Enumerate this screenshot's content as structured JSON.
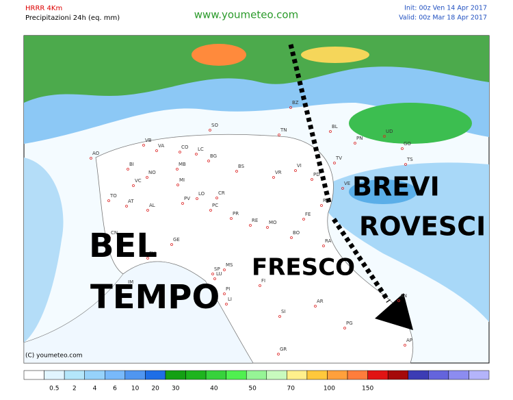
{
  "header": {
    "model": "HRRR 4Km",
    "product": "Precipitazioni 24h (eq. mm)",
    "site": "www.youmeteo.com",
    "init": "Init: 00z Ven  14 Apr 2017",
    "valid": "Valid: 00z Mar  18 Apr 2017"
  },
  "annotations": {
    "bel": "BEL",
    "tempo": "TEMPO",
    "fresco": "FRESCO",
    "brevi": "BREVI",
    "rovesci": "ROVESCI"
  },
  "copyright": "(C) youmeteo.com",
  "provinces": [
    "BZ",
    "SO",
    "TN",
    "BL",
    "UD",
    "PN",
    "GO",
    "TS",
    "VB",
    "VA",
    "CO",
    "LC",
    "BG",
    "BS",
    "VR",
    "VI",
    "TV",
    "VE",
    "PD",
    "RO",
    "AO",
    "BI",
    "NO",
    "MB",
    "MI",
    "CR",
    "LO",
    "PV",
    "PC",
    "TO",
    "VC",
    "AL",
    "AT",
    "CN",
    "GE",
    "SV",
    "IM",
    "SP",
    "MS",
    "LU",
    "PI",
    "LI",
    "FI",
    "PR",
    "RE",
    "MO",
    "BO",
    "FE",
    "RA",
    "AN",
    "AR",
    "SI",
    "GR",
    "PG",
    "AP"
  ],
  "legend": {
    "labels": [
      0.5,
      2,
      4,
      6,
      10,
      20,
      30,
      40,
      50,
      70,
      100,
      150
    ],
    "colors": [
      "#ffffff",
      "#e1f5ff",
      "#b4e6fa",
      "#96d2fa",
      "#78b9fa",
      "#5096f0",
      "#1e6ee6",
      "#14a014",
      "#1eb41e",
      "#37d23c",
      "#50f050",
      "#96f596",
      "#c8fabe",
      "#fff08c",
      "#ffc83c",
      "#ffa03c",
      "#ff7d3c",
      "#e11414",
      "#a50a0a",
      "#3c3cb4",
      "#6464dc",
      "#8c8cf0",
      "#b4b4fa"
    ]
  }
}
